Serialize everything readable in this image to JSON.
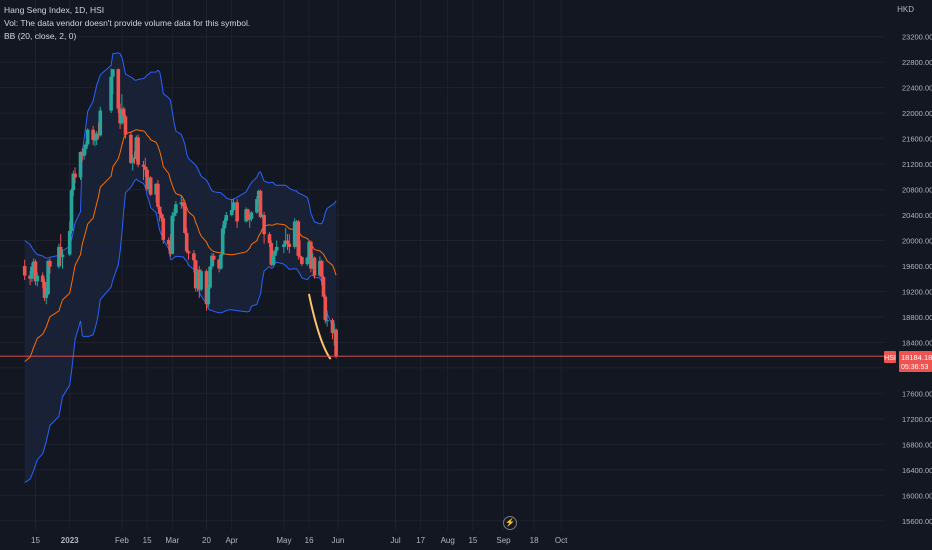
{
  "legend": {
    "title": "Hang Seng Index, 1D, HSI",
    "vol_line": "Vol: The data vendor doesn't provide volume data for this symbol.",
    "bb_line": "BB (20, close, 2, 0)"
  },
  "currency": "HKD",
  "price_tag": {
    "symbol": "HSI",
    "price": "18184.18",
    "countdown": "05:36:53"
  },
  "colors": {
    "background": "#131722",
    "up": "#26a69a",
    "down": "#ef5350",
    "bb_basis": "#ff6d00",
    "bb_band": "#2962ff",
    "bb_fill": "#1e2a45",
    "price_line": "#ef5350",
    "drawing": "#ffc46b"
  },
  "chart_data": {
    "type": "candlestick",
    "title": "Hang Seng Index, 1D, HSI",
    "y_axis": {
      "ticks": [
        15600,
        16000,
        16400,
        16800,
        17200,
        17600,
        18000,
        18400,
        18800,
        19200,
        19600,
        20000,
        20400,
        20800,
        21200,
        21600,
        22000,
        22400,
        22800,
        23200
      ],
      "tick_labels": [
        "15600.00",
        "16000.00",
        "16400.00",
        "16800.00",
        "17200.00",
        "17600.00",
        "18000.00",
        "18400.00",
        "18800.00",
        "19200.00",
        "19600.00",
        "20000.00",
        "20400.00",
        "20800.00",
        "21200.00",
        "21600.00",
        "22000.00",
        "22400.00",
        "22800.00",
        "23200.00"
      ],
      "range": [
        15550,
        23400
      ]
    },
    "x_axis": {
      "labels": [
        "15",
        "2023",
        "Feb",
        "15",
        "Mar",
        "20",
        "Apr",
        "May",
        "16",
        "Jun",
        "Jul",
        "17",
        "Aug",
        "15",
        "Sep",
        "18",
        "Oct"
      ],
      "label_dates": [
        "2022-12-15",
        "2023-01-03",
        "2023-02-01",
        "2023-02-15",
        "2023-03-01",
        "2023-03-20",
        "2023-04-03",
        "2023-05-02",
        "2023-05-16",
        "2023-06-01",
        "2023-07-03",
        "2023-07-17",
        "2023-08-01",
        "2023-08-15",
        "2023-09-01",
        "2023-09-18",
        "2023-10-03"
      ]
    },
    "current_price": 18184.18,
    "candles": [
      {
        "date": "2022-12-09",
        "o": 19600,
        "h": 19700,
        "l": 19380,
        "c": 19450
      },
      {
        "date": "2022-12-12",
        "o": 19450,
        "h": 19520,
        "l": 19300,
        "c": 19400
      },
      {
        "date": "2022-12-13",
        "o": 19400,
        "h": 19650,
        "l": 19350,
        "c": 19590
      },
      {
        "date": "2022-12-14",
        "o": 19590,
        "h": 19720,
        "l": 19480,
        "c": 19670
      },
      {
        "date": "2022-12-15",
        "o": 19670,
        "h": 19700,
        "l": 19300,
        "c": 19360
      },
      {
        "date": "2022-12-16",
        "o": 19360,
        "h": 19500,
        "l": 19280,
        "c": 19450
      },
      {
        "date": "2022-12-19",
        "o": 19450,
        "h": 19500,
        "l": 19250,
        "c": 19350
      },
      {
        "date": "2022-12-20",
        "o": 19350,
        "h": 19400,
        "l": 19050,
        "c": 19100
      },
      {
        "date": "2022-12-21",
        "o": 19100,
        "h": 19250,
        "l": 19000,
        "c": 19160
      },
      {
        "date": "2022-12-22",
        "o": 19160,
        "h": 19700,
        "l": 19140,
        "c": 19680
      },
      {
        "date": "2022-12-23",
        "o": 19680,
        "h": 19720,
        "l": 19480,
        "c": 19590
      },
      {
        "date": "2022-12-28",
        "o": 19590,
        "h": 19950,
        "l": 19560,
        "c": 19900
      },
      {
        "date": "2022-12-29",
        "o": 19900,
        "h": 20100,
        "l": 19600,
        "c": 19740
      },
      {
        "date": "2022-12-30",
        "o": 19740,
        "h": 19850,
        "l": 19560,
        "c": 19780
      },
      {
        "date": "2023-01-03",
        "o": 19780,
        "h": 20300,
        "l": 19760,
        "c": 20150
      },
      {
        "date": "2023-01-04",
        "o": 20150,
        "h": 20820,
        "l": 20100,
        "c": 20790
      },
      {
        "date": "2023-01-05",
        "o": 20790,
        "h": 21100,
        "l": 20700,
        "c": 21050
      },
      {
        "date": "2023-01-06",
        "o": 21050,
        "h": 21150,
        "l": 20900,
        "c": 20990
      },
      {
        "date": "2023-01-09",
        "o": 20990,
        "h": 21400,
        "l": 20950,
        "c": 21390
      },
      {
        "date": "2023-01-10",
        "o": 21390,
        "h": 21450,
        "l": 21250,
        "c": 21330
      },
      {
        "date": "2023-01-11",
        "o": 21330,
        "h": 21500,
        "l": 21270,
        "c": 21440
      },
      {
        "date": "2023-01-12",
        "o": 21440,
        "h": 21550,
        "l": 21350,
        "c": 21510
      },
      {
        "date": "2023-01-13",
        "o": 21510,
        "h": 21760,
        "l": 21480,
        "c": 21740
      },
      {
        "date": "2023-01-16",
        "o": 21740,
        "h": 21800,
        "l": 21500,
        "c": 21580
      },
      {
        "date": "2023-01-17",
        "o": 21580,
        "h": 21700,
        "l": 21480,
        "c": 21580
      },
      {
        "date": "2023-01-18",
        "o": 21580,
        "h": 21720,
        "l": 21500,
        "c": 21680
      },
      {
        "date": "2023-01-19",
        "o": 21680,
        "h": 21850,
        "l": 21600,
        "c": 21650
      },
      {
        "date": "2023-01-20",
        "o": 21650,
        "h": 22100,
        "l": 21630,
        "c": 22040
      },
      {
        "date": "2023-01-26",
        "o": 22040,
        "h": 22700,
        "l": 22000,
        "c": 22570
      },
      {
        "date": "2023-01-27",
        "o": 22570,
        "h": 22690,
        "l": 22300,
        "c": 22690
      },
      {
        "date": "2023-01-30",
        "o": 22690,
        "h": 22700,
        "l": 22000,
        "c": 22070
      },
      {
        "date": "2023-01-31",
        "o": 22070,
        "h": 22150,
        "l": 21750,
        "c": 21840
      },
      {
        "date": "2023-02-01",
        "o": 21840,
        "h": 22300,
        "l": 21820,
        "c": 22070
      },
      {
        "date": "2023-02-02",
        "o": 22070,
        "h": 22100,
        "l": 21900,
        "c": 21950
      },
      {
        "date": "2023-02-03",
        "o": 21950,
        "h": 21980,
        "l": 21600,
        "c": 21660
      },
      {
        "date": "2023-02-06",
        "o": 21660,
        "h": 21700,
        "l": 21200,
        "c": 21220
      },
      {
        "date": "2023-02-07",
        "o": 21220,
        "h": 21350,
        "l": 21100,
        "c": 21300
      },
      {
        "date": "2023-02-08",
        "o": 21300,
        "h": 21400,
        "l": 21200,
        "c": 21280
      },
      {
        "date": "2023-02-09",
        "o": 21280,
        "h": 21650,
        "l": 21250,
        "c": 21620
      },
      {
        "date": "2023-02-10",
        "o": 21620,
        "h": 21660,
        "l": 21150,
        "c": 21190
      },
      {
        "date": "2023-02-13",
        "o": 21190,
        "h": 21250,
        "l": 20950,
        "c": 21160
      },
      {
        "date": "2023-02-14",
        "o": 21160,
        "h": 21300,
        "l": 21000,
        "c": 21110
      },
      {
        "date": "2023-02-15",
        "o": 21110,
        "h": 21150,
        "l": 20780,
        "c": 20810
      },
      {
        "date": "2023-02-16",
        "o": 20810,
        "h": 21000,
        "l": 20750,
        "c": 20990
      },
      {
        "date": "2023-02-17",
        "o": 20990,
        "h": 21010,
        "l": 20700,
        "c": 20720
      },
      {
        "date": "2023-02-20",
        "o": 20720,
        "h": 20900,
        "l": 20600,
        "c": 20890
      },
      {
        "date": "2023-02-21",
        "o": 20890,
        "h": 20950,
        "l": 20500,
        "c": 20530
      },
      {
        "date": "2023-02-22",
        "o": 20530,
        "h": 20550,
        "l": 20300,
        "c": 20420
      },
      {
        "date": "2023-02-23",
        "o": 20420,
        "h": 20450,
        "l": 20300,
        "c": 20350
      },
      {
        "date": "2023-02-24",
        "o": 20350,
        "h": 20400,
        "l": 19950,
        "c": 20010
      },
      {
        "date": "2023-02-27",
        "o": 20010,
        "h": 20050,
        "l": 19850,
        "c": 19940
      },
      {
        "date": "2023-02-28",
        "o": 19940,
        "h": 20100,
        "l": 19750,
        "c": 19790
      },
      {
        "date": "2023-03-01",
        "o": 19790,
        "h": 20450,
        "l": 19780,
        "c": 20390
      },
      {
        "date": "2023-03-02",
        "o": 20390,
        "h": 20500,
        "l": 20300,
        "c": 20430
      },
      {
        "date": "2023-03-03",
        "o": 20430,
        "h": 20620,
        "l": 20380,
        "c": 20570
      },
      {
        "date": "2023-03-06",
        "o": 20570,
        "h": 20700,
        "l": 20500,
        "c": 20600
      },
      {
        "date": "2023-03-07",
        "o": 20600,
        "h": 20650,
        "l": 20500,
        "c": 20540
      },
      {
        "date": "2023-03-08",
        "o": 20540,
        "h": 20600,
        "l": 20100,
        "c": 20120
      },
      {
        "date": "2023-03-09",
        "o": 20120,
        "h": 20200,
        "l": 19800,
        "c": 19830
      },
      {
        "date": "2023-03-10",
        "o": 19830,
        "h": 19850,
        "l": 19700,
        "c": 19800
      },
      {
        "date": "2023-03-13",
        "o": 19800,
        "h": 19850,
        "l": 19500,
        "c": 19690
      },
      {
        "date": "2023-03-14",
        "o": 19690,
        "h": 19700,
        "l": 19200,
        "c": 19250
      },
      {
        "date": "2023-03-15",
        "o": 19250,
        "h": 19550,
        "l": 19200,
        "c": 19540
      },
      {
        "date": "2023-03-16",
        "o": 19540,
        "h": 19600,
        "l": 19100,
        "c": 19230
      },
      {
        "date": "2023-03-17",
        "o": 19230,
        "h": 19550,
        "l": 19200,
        "c": 19520
      },
      {
        "date": "2023-03-20",
        "o": 19520,
        "h": 19550,
        "l": 18900,
        "c": 19000
      },
      {
        "date": "2023-03-21",
        "o": 19000,
        "h": 19300,
        "l": 18950,
        "c": 19260
      },
      {
        "date": "2023-03-22",
        "o": 19260,
        "h": 19600,
        "l": 19240,
        "c": 19590
      },
      {
        "date": "2023-03-23",
        "o": 19590,
        "h": 19800,
        "l": 19550,
        "c": 19760
      },
      {
        "date": "2023-03-24",
        "o": 19760,
        "h": 19800,
        "l": 19600,
        "c": 19700
      },
      {
        "date": "2023-03-27",
        "o": 19700,
        "h": 19720,
        "l": 19500,
        "c": 19560
      },
      {
        "date": "2023-03-28",
        "o": 19560,
        "h": 19800,
        "l": 19540,
        "c": 19780
      },
      {
        "date": "2023-03-29",
        "o": 19780,
        "h": 20250,
        "l": 19760,
        "c": 20190
      },
      {
        "date": "2023-03-30",
        "o": 20190,
        "h": 20350,
        "l": 20100,
        "c": 20310
      },
      {
        "date": "2023-03-31",
        "o": 20310,
        "h": 20450,
        "l": 20250,
        "c": 20400
      },
      {
        "date": "2023-04-03",
        "o": 20400,
        "h": 20650,
        "l": 20380,
        "c": 20480
      },
      {
        "date": "2023-04-04",
        "o": 20480,
        "h": 20650,
        "l": 20450,
        "c": 20600
      },
      {
        "date": "2023-04-06",
        "o": 20600,
        "h": 20650,
        "l": 20200,
        "c": 20300
      },
      {
        "date": "2023-04-11",
        "o": 20300,
        "h": 20520,
        "l": 20280,
        "c": 20490
      },
      {
        "date": "2023-04-12",
        "o": 20490,
        "h": 20500,
        "l": 20300,
        "c": 20330
      },
      {
        "date": "2023-04-13",
        "o": 20330,
        "h": 20400,
        "l": 20200,
        "c": 20340
      },
      {
        "date": "2023-04-14",
        "o": 20340,
        "h": 20460,
        "l": 20300,
        "c": 20440
      },
      {
        "date": "2023-04-17",
        "o": 20440,
        "h": 20700,
        "l": 20420,
        "c": 20650
      },
      {
        "date": "2023-04-18",
        "o": 20650,
        "h": 20800,
        "l": 20600,
        "c": 20780
      },
      {
        "date": "2023-04-19",
        "o": 20780,
        "h": 20800,
        "l": 20350,
        "c": 20370
      },
      {
        "date": "2023-04-20",
        "o": 20370,
        "h": 20420,
        "l": 20350,
        "c": 20400
      },
      {
        "date": "2023-04-21",
        "o": 20400,
        "h": 20450,
        "l": 19950,
        "c": 20100
      },
      {
        "date": "2023-04-24",
        "o": 20100,
        "h": 20130,
        "l": 19900,
        "c": 19960
      },
      {
        "date": "2023-04-25",
        "o": 19960,
        "h": 20000,
        "l": 19600,
        "c": 19620
      },
      {
        "date": "2023-04-26",
        "o": 19620,
        "h": 19800,
        "l": 19600,
        "c": 19760
      },
      {
        "date": "2023-04-27",
        "o": 19760,
        "h": 19860,
        "l": 19650,
        "c": 19840
      },
      {
        "date": "2023-04-28",
        "o": 19840,
        "h": 20000,
        "l": 19800,
        "c": 19900
      },
      {
        "date": "2023-05-02",
        "o": 19900,
        "h": 20000,
        "l": 19800,
        "c": 19940
      },
      {
        "date": "2023-05-03",
        "o": 19940,
        "h": 20200,
        "l": 19900,
        "c": 20000
      },
      {
        "date": "2023-05-04",
        "o": 20000,
        "h": 20100,
        "l": 19850,
        "c": 19950
      },
      {
        "date": "2023-05-05",
        "o": 19950,
        "h": 20100,
        "l": 19800,
        "c": 19900
      },
      {
        "date": "2023-05-08",
        "o": 19900,
        "h": 20350,
        "l": 19870,
        "c": 20300
      },
      {
        "date": "2023-05-09",
        "o": 20300,
        "h": 20320,
        "l": 20200,
        "c": 20300
      },
      {
        "date": "2023-05-10",
        "o": 20300,
        "h": 20320,
        "l": 19700,
        "c": 19760
      },
      {
        "date": "2023-05-11",
        "o": 19760,
        "h": 20000,
        "l": 19700,
        "c": 19740
      },
      {
        "date": "2023-05-12",
        "o": 19740,
        "h": 19750,
        "l": 19600,
        "c": 19630
      },
      {
        "date": "2023-05-15",
        "o": 19630,
        "h": 19750,
        "l": 19600,
        "c": 19730
      },
      {
        "date": "2023-05-16",
        "o": 19730,
        "h": 20000,
        "l": 19700,
        "c": 19980
      },
      {
        "date": "2023-05-17",
        "o": 19980,
        "h": 20000,
        "l": 19500,
        "c": 19560
      },
      {
        "date": "2023-05-18",
        "o": 19560,
        "h": 19800,
        "l": 19550,
        "c": 19730
      },
      {
        "date": "2023-05-19",
        "o": 19730,
        "h": 19750,
        "l": 19400,
        "c": 19450
      },
      {
        "date": "2023-05-22",
        "o": 19450,
        "h": 19750,
        "l": 19430,
        "c": 19680
      },
      {
        "date": "2023-05-23",
        "o": 19680,
        "h": 19700,
        "l": 19300,
        "c": 19430
      },
      {
        "date": "2023-05-24",
        "o": 19430,
        "h": 19450,
        "l": 19100,
        "c": 19120
      },
      {
        "date": "2023-05-25",
        "o": 19120,
        "h": 19150,
        "l": 18700,
        "c": 18750
      },
      {
        "date": "2023-05-26",
        "o": 18750,
        "h": 18900,
        "l": 18650,
        "c": 18750
      },
      {
        "date": "2023-05-29",
        "o": 18750,
        "h": 18780,
        "l": 18450,
        "c": 18550
      },
      {
        "date": "2023-05-30",
        "o": 18550,
        "h": 18700,
        "l": 18350,
        "c": 18600
      },
      {
        "date": "2023-05-31",
        "o": 18600,
        "h": 18620,
        "l": 18150,
        "c": 18184.18
      }
    ],
    "bollinger": {
      "params": "20, close, 2, 0",
      "basis_start": {
        "date": "2022-12-09",
        "value": 18100
      },
      "band_start": {
        "upper": 20000,
        "lower": 16200
      }
    }
  }
}
